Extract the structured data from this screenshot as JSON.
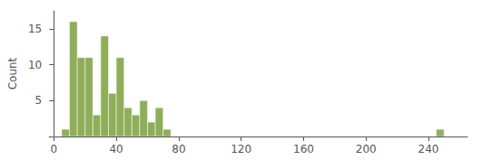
{
  "chart_data": {
    "type": "histogram",
    "bins": [
      0,
      5,
      10,
      15,
      20,
      25,
      30,
      35,
      40,
      45,
      50,
      55,
      60,
      65,
      70,
      75,
      80,
      85,
      90,
      95,
      100,
      105,
      110,
      115,
      120,
      125,
      130,
      135,
      140,
      145,
      150,
      155,
      160,
      165,
      170,
      175,
      180,
      185,
      190,
      195,
      200,
      205,
      210,
      215,
      220,
      225,
      230,
      235,
      240,
      245,
      250
    ],
    "values": [
      0,
      1,
      16,
      11,
      11,
      3,
      14,
      6,
      11,
      4,
      3,
      5,
      2,
      4,
      1,
      0,
      0,
      0,
      0,
      0,
      0,
      0,
      0,
      0,
      0,
      0,
      0,
      0,
      0,
      0,
      0,
      0,
      0,
      0,
      0,
      0,
      0,
      0,
      0,
      0,
      0,
      0,
      0,
      0,
      0,
      0,
      0,
      0,
      0,
      1
    ],
    "color": "#8fae5a",
    "ylabel": "Count",
    "xlim": [
      -3,
      265
    ],
    "xticks": [
      0,
      40,
      80,
      120,
      160,
      200,
      240
    ],
    "ylim": [
      0,
      17.5
    ],
    "yticks": [
      5,
      10,
      15
    ],
    "grid": false
  }
}
